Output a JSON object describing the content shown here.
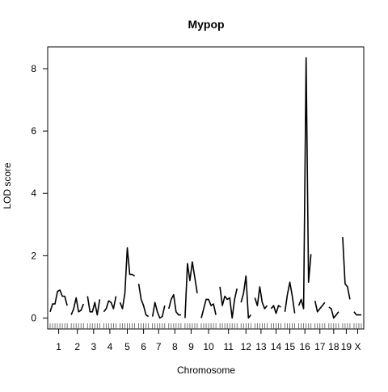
{
  "chart_data": {
    "type": "line",
    "title": "Mypop",
    "xlabel": "Chromosome",
    "ylabel": "LOD score",
    "ylim": [
      -0.35,
      8.7
    ],
    "yticks": [
      0,
      2,
      4,
      6,
      8
    ],
    "grid": false,
    "line_color": "#000000",
    "chromosomes": [
      {
        "label": "1",
        "values": [
          0.2,
          0.45,
          0.45,
          0.85,
          0.9,
          0.7,
          0.7,
          0.4
        ]
      },
      {
        "label": "2",
        "values": [
          0.1,
          0.3,
          0.65,
          0.2,
          0.25,
          0.45
        ]
      },
      {
        "label": "3",
        "values": [
          0.7,
          0.2,
          0.2,
          0.5,
          0.1,
          0.6
        ]
      },
      {
        "label": "4",
        "values": [
          0.2,
          0.3,
          0.55,
          0.5,
          0.3,
          0.7
        ]
      },
      {
        "label": "5",
        "values": [
          0.5,
          0.3,
          0.8,
          2.25,
          1.4,
          1.4,
          1.35
        ]
      },
      {
        "label": "6",
        "values": [
          1.1,
          0.6,
          0.4,
          0.1,
          0.05
        ]
      },
      {
        "label": "7",
        "values": [
          0.05,
          0.5,
          0.2,
          0.0,
          0.05,
          0.4
        ]
      },
      {
        "label": "8",
        "values": [
          0.3,
          0.6,
          0.75,
          0.2,
          0.1,
          0.1
        ]
      },
      {
        "label": "9",
        "values": [
          0.0,
          1.75,
          1.2,
          1.8,
          1.3,
          0.8
        ]
      },
      {
        "label": "10",
        "values": [
          0.0,
          0.3,
          0.6,
          0.6,
          0.4,
          0.45,
          0.1
        ]
      },
      {
        "label": "11",
        "values": [
          1.0,
          0.4,
          0.7,
          0.6,
          0.65,
          0.0,
          0.6,
          0.95
        ]
      },
      {
        "label": "12",
        "values": [
          0.5,
          0.8,
          1.35,
          0.0,
          0.1
        ]
      },
      {
        "label": "13",
        "values": [
          0.65,
          0.4,
          1.0,
          0.5,
          0.3,
          0.4
        ]
      },
      {
        "label": "14",
        "values": [
          0.3,
          0.4,
          0.15,
          0.4,
          0.35
        ]
      },
      {
        "label": "15",
        "values": [
          0.2,
          0.75,
          1.15,
          0.7,
          0.15
        ]
      },
      {
        "label": "16",
        "values": [
          0.4,
          0.6,
          0.3,
          8.35,
          1.15,
          2.05
        ]
      },
      {
        "label": "17",
        "values": [
          0.55,
          0.2,
          0.3,
          0.4,
          0.5
        ]
      },
      {
        "label": "18",
        "values": [
          0.35,
          0.3,
          0.0,
          0.1,
          0.2
        ]
      },
      {
        "label": "19",
        "values": [
          2.6,
          1.1,
          1.0,
          0.6
        ]
      },
      {
        "label": "X",
        "values": [
          0.2,
          0.1,
          0.1,
          0.1
        ]
      }
    ]
  }
}
